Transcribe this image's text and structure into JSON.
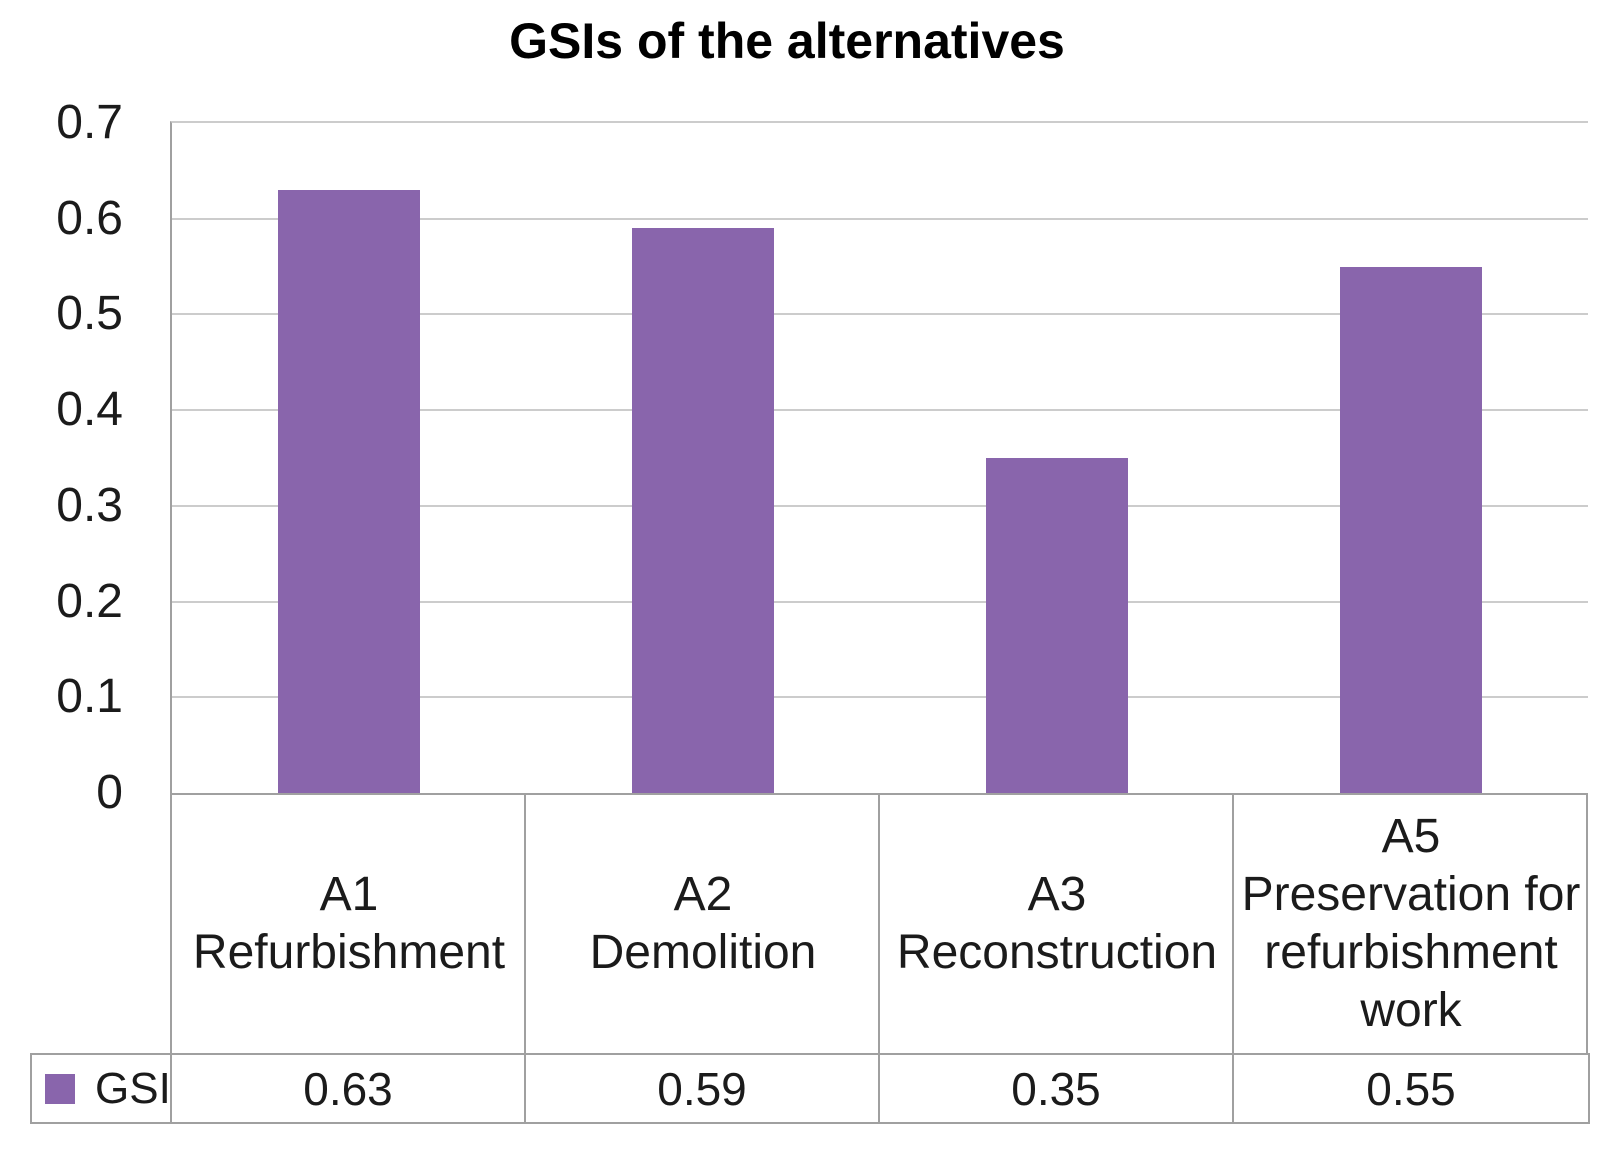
{
  "chart_data": {
    "type": "bar",
    "title": "GSIs of the alternatives",
    "categories": [
      "A1 Refurbishment",
      "A2 Demolition",
      "A3 Reconstruction",
      "A5 Preservation for refurbishment work"
    ],
    "category_lines": [
      [
        "A1",
        "Refurbishment"
      ],
      [
        "A2",
        "Demolition"
      ],
      [
        "A3",
        "Reconstruction"
      ],
      [
        "A5",
        "Preservation for",
        "refurbishment",
        "work"
      ]
    ],
    "series": [
      {
        "name": "GSI",
        "values": [
          0.63,
          0.59,
          0.35,
          0.55
        ],
        "display_values": [
          "0.63",
          "0.59",
          "0.35",
          "0.55"
        ],
        "color": "#8965ac"
      }
    ],
    "xlabel": "",
    "ylabel": "",
    "ylim": [
      0,
      0.7
    ],
    "ytick_values": [
      0.7,
      0.6,
      0.5,
      0.4,
      0.3,
      0.2,
      0.1,
      0
    ],
    "ytick_labels": [
      "0.7",
      "0.6",
      "0.5",
      "0.4",
      "0.3",
      "0.2",
      "0.1",
      "0"
    ],
    "grid": true,
    "legend_position": "bottom-left-table"
  },
  "colors": {
    "bar": "#8965ac",
    "gridline": "#cccccc",
    "axis_line": "#a0a0a0",
    "table_border": "#a0a0a0",
    "title_text": "#000000",
    "label_text": "#1b1b1b",
    "background": "#ffffff"
  }
}
